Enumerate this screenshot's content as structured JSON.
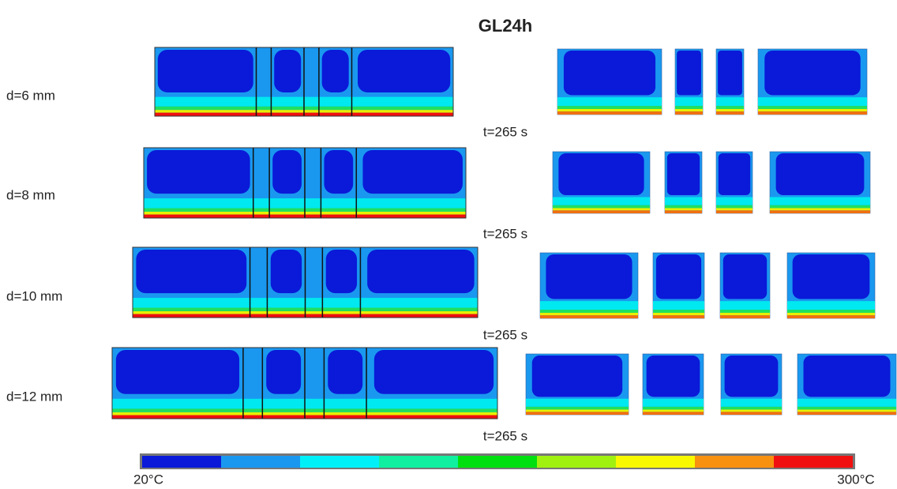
{
  "title": "GL24h",
  "rows": [
    {
      "label": "d=6 mm",
      "time": "t=265 s"
    },
    {
      "label": "d=8 mm",
      "time": "t=265 s"
    },
    {
      "label": "d=10 mm",
      "time": "t=265 s"
    },
    {
      "label": "d=12 mm",
      "time": "t=265 s"
    }
  ],
  "colorbar": {
    "min_label": "20°C",
    "max_label": "300°C"
  }
}
